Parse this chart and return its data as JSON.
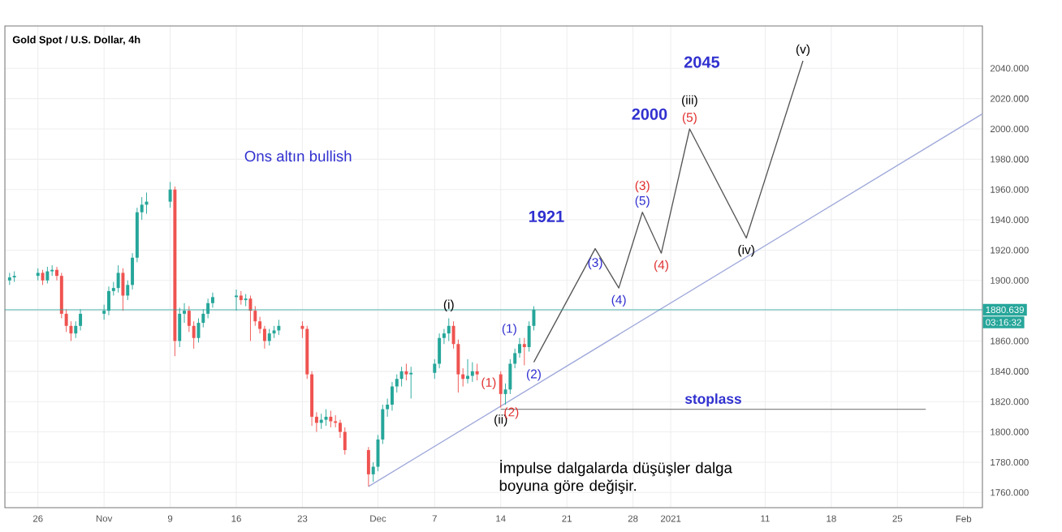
{
  "chart_data": {
    "type": "candlestick",
    "title": "Gold Spot / U.S. Dollar, 4h",
    "xlim": [
      "2020-10-22T12:00",
      "2021-02-03"
    ],
    "ylim": [
      1750,
      2068
    ],
    "xticks": [
      {
        "value": "2020-10-26",
        "label": "26"
      },
      {
        "value": "2020-11-02",
        "label": "Nov"
      },
      {
        "value": "2020-11-09",
        "label": "9"
      },
      {
        "value": "2020-11-16",
        "label": "16"
      },
      {
        "value": "2020-11-23",
        "label": "23"
      },
      {
        "value": "2020-12-01",
        "label": "Dec"
      },
      {
        "value": "2020-12-07",
        "label": "7"
      },
      {
        "value": "2020-12-14",
        "label": "14"
      },
      {
        "value": "2020-12-21",
        "label": "21"
      },
      {
        "value": "2020-12-28",
        "label": "28"
      },
      {
        "value": "2021-01-01",
        "label": "2021"
      },
      {
        "value": "2021-01-11",
        "label": "11"
      },
      {
        "value": "2021-01-18",
        "label": "18"
      },
      {
        "value": "2021-01-25",
        "label": "25"
      },
      {
        "value": "2021-02-01",
        "label": "Feb"
      }
    ],
    "yticks": [
      {
        "value": 1760,
        "label": "1760.000"
      },
      {
        "value": 1780,
        "label": "1780.000"
      },
      {
        "value": 1800,
        "label": "1800.000"
      },
      {
        "value": 1820,
        "label": "1820.000"
      },
      {
        "value": 1840,
        "label": "1840.000"
      },
      {
        "value": 1860,
        "label": "1860.000"
      },
      {
        "value": 1880,
        "label": null
      },
      {
        "value": 1900,
        "label": "1900.000"
      },
      {
        "value": 1920,
        "label": "1920.000"
      },
      {
        "value": 1940,
        "label": "1940.000"
      },
      {
        "value": 1960,
        "label": "1960.000"
      },
      {
        "value": 1980,
        "label": "1980.000"
      },
      {
        "value": 2000,
        "label": "2000.000"
      },
      {
        "value": 2020,
        "label": "2020.000"
      },
      {
        "value": 2040,
        "label": "2040.000"
      }
    ],
    "grid": true,
    "series": [
      {
        "x": [
          "2020-10-23T00:00",
          "2020-10-23T12:00",
          "2020-10-26T00:00",
          "2020-10-26T12:00",
          "2020-10-27T00:00",
          "2020-10-27T12:00",
          "2020-10-28T00:00",
          "2020-10-28T12:00",
          "2020-10-29T00:00",
          "2020-10-29T12:00",
          "2020-10-30T00:00",
          "2020-10-30T12:00",
          "2020-11-02T00:00",
          "2020-11-02T12:00",
          "2020-11-03T00:00",
          "2020-11-03T12:00",
          "2020-11-04T00:00",
          "2020-11-04T12:00",
          "2020-11-05T00:00",
          "2020-11-05T12:00",
          "2020-11-06T00:00",
          "2020-11-06T12:00",
          "2020-11-09T00:00",
          "2020-11-09T12:00",
          "2020-11-10T00:00",
          "2020-11-10T12:00",
          "2020-11-11T00:00",
          "2020-11-11T12:00",
          "2020-11-12T00:00",
          "2020-11-12T12:00",
          "2020-11-13T00:00",
          "2020-11-13T12:00",
          "2020-11-16T00:00",
          "2020-11-16T12:00",
          "2020-11-17T00:00",
          "2020-11-17T12:00",
          "2020-11-18T00:00",
          "2020-11-18T12:00",
          "2020-11-19T00:00",
          "2020-11-19T12:00",
          "2020-11-20T00:00",
          "2020-11-20T12:00",
          "2020-11-23T00:00",
          "2020-11-23T12:00",
          "2020-11-24T00:00",
          "2020-11-24T12:00",
          "2020-11-25T00:00",
          "2020-11-25T12:00",
          "2020-11-26T00:00",
          "2020-11-26T12:00",
          "2020-11-27T00:00",
          "2020-11-27T12:00",
          "2020-11-30T00:00",
          "2020-11-30T12:00",
          "2020-12-01T00:00",
          "2020-12-01T12:00",
          "2020-12-02T00:00",
          "2020-12-02T12:00",
          "2020-12-03T00:00",
          "2020-12-03T12:00",
          "2020-12-04T00:00",
          "2020-12-04T12:00",
          "2020-12-07T00:00",
          "2020-12-07T12:00",
          "2020-12-08T00:00",
          "2020-12-08T12:00",
          "2020-12-09T00:00",
          "2020-12-09T12:00",
          "2020-12-10T00:00",
          "2020-12-10T12:00",
          "2020-12-11T00:00",
          "2020-12-11T12:00",
          "2020-12-14T00:00",
          "2020-12-14T12:00",
          "2020-12-15T00:00",
          "2020-12-15T12:00",
          "2020-12-16T00:00",
          "2020-12-16T12:00",
          "2020-12-17T00:00",
          "2020-12-17T12:00"
        ],
        "ohlc": [
          [
            1900,
            1905,
            1897,
            1902
          ],
          [
            1902,
            1906,
            1899,
            1903
          ],
          [
            1903,
            1908,
            1900,
            1905
          ],
          [
            1905,
            1907,
            1897,
            1900
          ],
          [
            1900,
            1909,
            1898,
            1906
          ],
          [
            1906,
            1910,
            1903,
            1907
          ],
          [
            1907,
            1909,
            1900,
            1903
          ],
          [
            1903,
            1905,
            1875,
            1878
          ],
          [
            1878,
            1881,
            1866,
            1870
          ],
          [
            1870,
            1873,
            1860,
            1865
          ],
          [
            1865,
            1873,
            1862,
            1870
          ],
          [
            1870,
            1881,
            1867,
            1878
          ],
          [
            1878,
            1884,
            1874,
            1880
          ],
          [
            1880,
            1896,
            1877,
            1893
          ],
          [
            1893,
            1899,
            1890,
            1895
          ],
          [
            1895,
            1910,
            1892,
            1905
          ],
          [
            1905,
            1908,
            1880,
            1890
          ],
          [
            1890,
            1900,
            1887,
            1897
          ],
          [
            1897,
            1918,
            1894,
            1915
          ],
          [
            1915,
            1948,
            1912,
            1945
          ],
          [
            1945,
            1955,
            1940,
            1950
          ],
          [
            1950,
            1958,
            1944,
            1952
          ],
          [
            1952,
            1965,
            1948,
            1960
          ],
          [
            1960,
            1962,
            1850,
            1860
          ],
          [
            1860,
            1882,
            1856,
            1878
          ],
          [
            1878,
            1885,
            1872,
            1880
          ],
          [
            1880,
            1883,
            1866,
            1870
          ],
          [
            1870,
            1873,
            1855,
            1862
          ],
          [
            1862,
            1875,
            1859,
            1872
          ],
          [
            1872,
            1881,
            1869,
            1878
          ],
          [
            1878,
            1888,
            1875,
            1885
          ],
          [
            1885,
            1892,
            1882,
            1889
          ],
          [
            1889,
            1894,
            1880,
            1890
          ],
          [
            1890,
            1893,
            1884,
            1887
          ],
          [
            1887,
            1891,
            1883,
            1888
          ],
          [
            1888,
            1890,
            1860,
            1880
          ],
          [
            1880,
            1883,
            1870,
            1873
          ],
          [
            1873,
            1876,
            1865,
            1868
          ],
          [
            1868,
            1870,
            1855,
            1860
          ],
          [
            1860,
            1868,
            1857,
            1865
          ],
          [
            1865,
            1870,
            1862,
            1867
          ],
          [
            1867,
            1874,
            1864,
            1870
          ],
          [
            1870,
            1873,
            1862,
            1868
          ],
          [
            1868,
            1870,
            1835,
            1838
          ],
          [
            1838,
            1840,
            1804,
            1810
          ],
          [
            1810,
            1813,
            1800,
            1806
          ],
          [
            1806,
            1812,
            1802,
            1808
          ],
          [
            1808,
            1815,
            1804,
            1810
          ],
          [
            1810,
            1814,
            1803,
            1807
          ],
          [
            1807,
            1811,
            1803,
            1806
          ],
          [
            1806,
            1808,
            1796,
            1800
          ],
          [
            1800,
            1803,
            1785,
            1788
          ],
          [
            1788,
            1790,
            1764,
            1772
          ],
          [
            1772,
            1780,
            1767,
            1777
          ],
          [
            1777,
            1798,
            1774,
            1795
          ],
          [
            1795,
            1818,
            1792,
            1815
          ],
          [
            1815,
            1822,
            1810,
            1818
          ],
          [
            1818,
            1833,
            1814,
            1830
          ],
          [
            1830,
            1838,
            1826,
            1835
          ],
          [
            1835,
            1843,
            1830,
            1840
          ],
          [
            1840,
            1845,
            1834,
            1838
          ],
          [
            1838,
            1843,
            1822,
            1839
          ],
          [
            1839,
            1848,
            1835,
            1845
          ],
          [
            1845,
            1865,
            1842,
            1862
          ],
          [
            1862,
            1868,
            1858,
            1865
          ],
          [
            1865,
            1875,
            1860,
            1870
          ],
          [
            1870,
            1873,
            1855,
            1858
          ],
          [
            1858,
            1861,
            1826,
            1838
          ],
          [
            1838,
            1842,
            1830,
            1835
          ],
          [
            1835,
            1848,
            1832,
            1837
          ],
          [
            1837,
            1846,
            1833,
            1840
          ],
          [
            1840,
            1845,
            1834,
            1838
          ],
          [
            1838,
            1840,
            1816,
            1825
          ],
          [
            1825,
            1832,
            1818,
            1828
          ],
          [
            1828,
            1848,
            1825,
            1845
          ],
          [
            1845,
            1855,
            1842,
            1852
          ],
          [
            1852,
            1862,
            1849,
            1858
          ],
          [
            1858,
            1862,
            1844,
            1856
          ],
          [
            1856,
            1873,
            1853,
            1870
          ],
          [
            1870,
            1883,
            1867,
            1880.639
          ]
        ],
        "colors": [
          "#26a69a",
          "#26a69a",
          "#26a69a",
          "#ef5350",
          "#26a69a",
          "#26a69a",
          "#ef5350",
          "#ef5350",
          "#ef5350",
          "#ef5350",
          "#26a69a",
          "#26a69a",
          "#26a69a",
          "#26a69a",
          "#26a69a",
          "#26a69a",
          "#ef5350",
          "#26a69a",
          "#26a69a",
          "#26a69a",
          "#26a69a",
          "#26a69a",
          "#26a69a",
          "#ef5350",
          "#26a69a",
          "#26a69a",
          "#ef5350",
          "#ef5350",
          "#26a69a",
          "#26a69a",
          "#26a69a",
          "#26a69a",
          "#26a69a",
          "#ef5350",
          "#26a69a",
          "#ef5350",
          "#ef5350",
          "#ef5350",
          "#ef5350",
          "#26a69a",
          "#26a69a",
          "#26a69a",
          "#ef5350",
          "#ef5350",
          "#ef5350",
          "#ef5350",
          "#26a69a",
          "#26a69a",
          "#ef5350",
          "#ef5350",
          "#ef5350",
          "#ef5350",
          "#ef5350",
          "#26a69a",
          "#26a69a",
          "#26a69a",
          "#26a69a",
          "#26a69a",
          "#26a69a",
          "#26a69a",
          "#ef5350",
          "#26a69a",
          "#26a69a",
          "#26a69a",
          "#26a69a",
          "#26a69a",
          "#ef5350",
          "#ef5350",
          "#ef5350",
          "#26a69a",
          "#26a69a",
          "#ef5350",
          "#ef5350",
          "#26a69a",
          "#26a69a",
          "#26a69a",
          "#26a69a",
          "#ef5350",
          "#26a69a",
          "#26a69a"
        ]
      },
      {
        "type": "line",
        "color": "#555555",
        "x": [
          "2020-12-17T12:00",
          "2020-12-24",
          "2020-12-26T12:00",
          "2020-12-29",
          "2020-12-31",
          "2021-01-03",
          "2021-01-09",
          "2021-01-15"
        ],
        "values": [
          1846,
          1921,
          1895,
          1945,
          1918,
          2000,
          1928,
          2045
        ]
      },
      {
        "type": "line",
        "color": "#9fa8da",
        "x": [
          "2020-11-30",
          "2021-02-03"
        ],
        "values": [
          1764,
          2010
        ]
      },
      {
        "type": "line",
        "name": "stoplass",
        "color": "#888888",
        "x": [
          "2020-12-14",
          "2021-01-28"
        ],
        "values": [
          1815,
          1815
        ]
      }
    ],
    "ref_lines": [
      {
        "axis": "y",
        "value": 1880.639,
        "label": "1880.639",
        "color": "#26a69a"
      }
    ],
    "annotations": [
      "Ons altın bullish",
      "İmpulse dalgalarda düşüşler dalga boyuna göre değişir.",
      "03:16:32",
      {
        "text": "(i)",
        "x": "2020-12-08T12:00",
        "y": 1875
      },
      {
        "text": "(ii)",
        "x": "2020-12-14T00:00",
        "y": 1816
      },
      {
        "text": "(1)",
        "x": "2020-12-14T12:00",
        "y": 1832
      },
      {
        "text": "(2)",
        "x": "2020-12-14T12:00",
        "y": 1818
      },
      {
        "text": "(1)",
        "x": "2020-12-16T00:00",
        "y": 1862
      },
      {
        "text": "(2)",
        "x": "2020-12-17T12:00",
        "y": 1846
      },
      {
        "text": "1921",
        "x": "2020-12-24",
        "y": 1921
      },
      {
        "text": "(3)",
        "x": "2020-12-24",
        "y": 1921
      },
      {
        "text": "(4)",
        "x": "2020-12-26T12:00",
        "y": 1895
      },
      {
        "text": "(3)",
        "x": "2020-12-29",
        "y": 1945
      },
      {
        "text": "(5)",
        "x": "2020-12-29",
        "y": 1945
      },
      {
        "text": "(4)",
        "x": "2020-12-31",
        "y": 1918
      },
      {
        "text": "2000",
        "x": "2021-01-03",
        "y": 2000
      },
      {
        "text": "(iii)",
        "x": "2021-01-03",
        "y": 2000
      },
      {
        "text": "(5)",
        "x": "2021-01-03",
        "y": 2000
      },
      {
        "text": "(iv)",
        "x": "2021-01-09",
        "y": 1928
      },
      "2045",
      {
        "text": "(v)",
        "x": "2021-01-15",
        "y": 2045
      }
    ]
  }
}
